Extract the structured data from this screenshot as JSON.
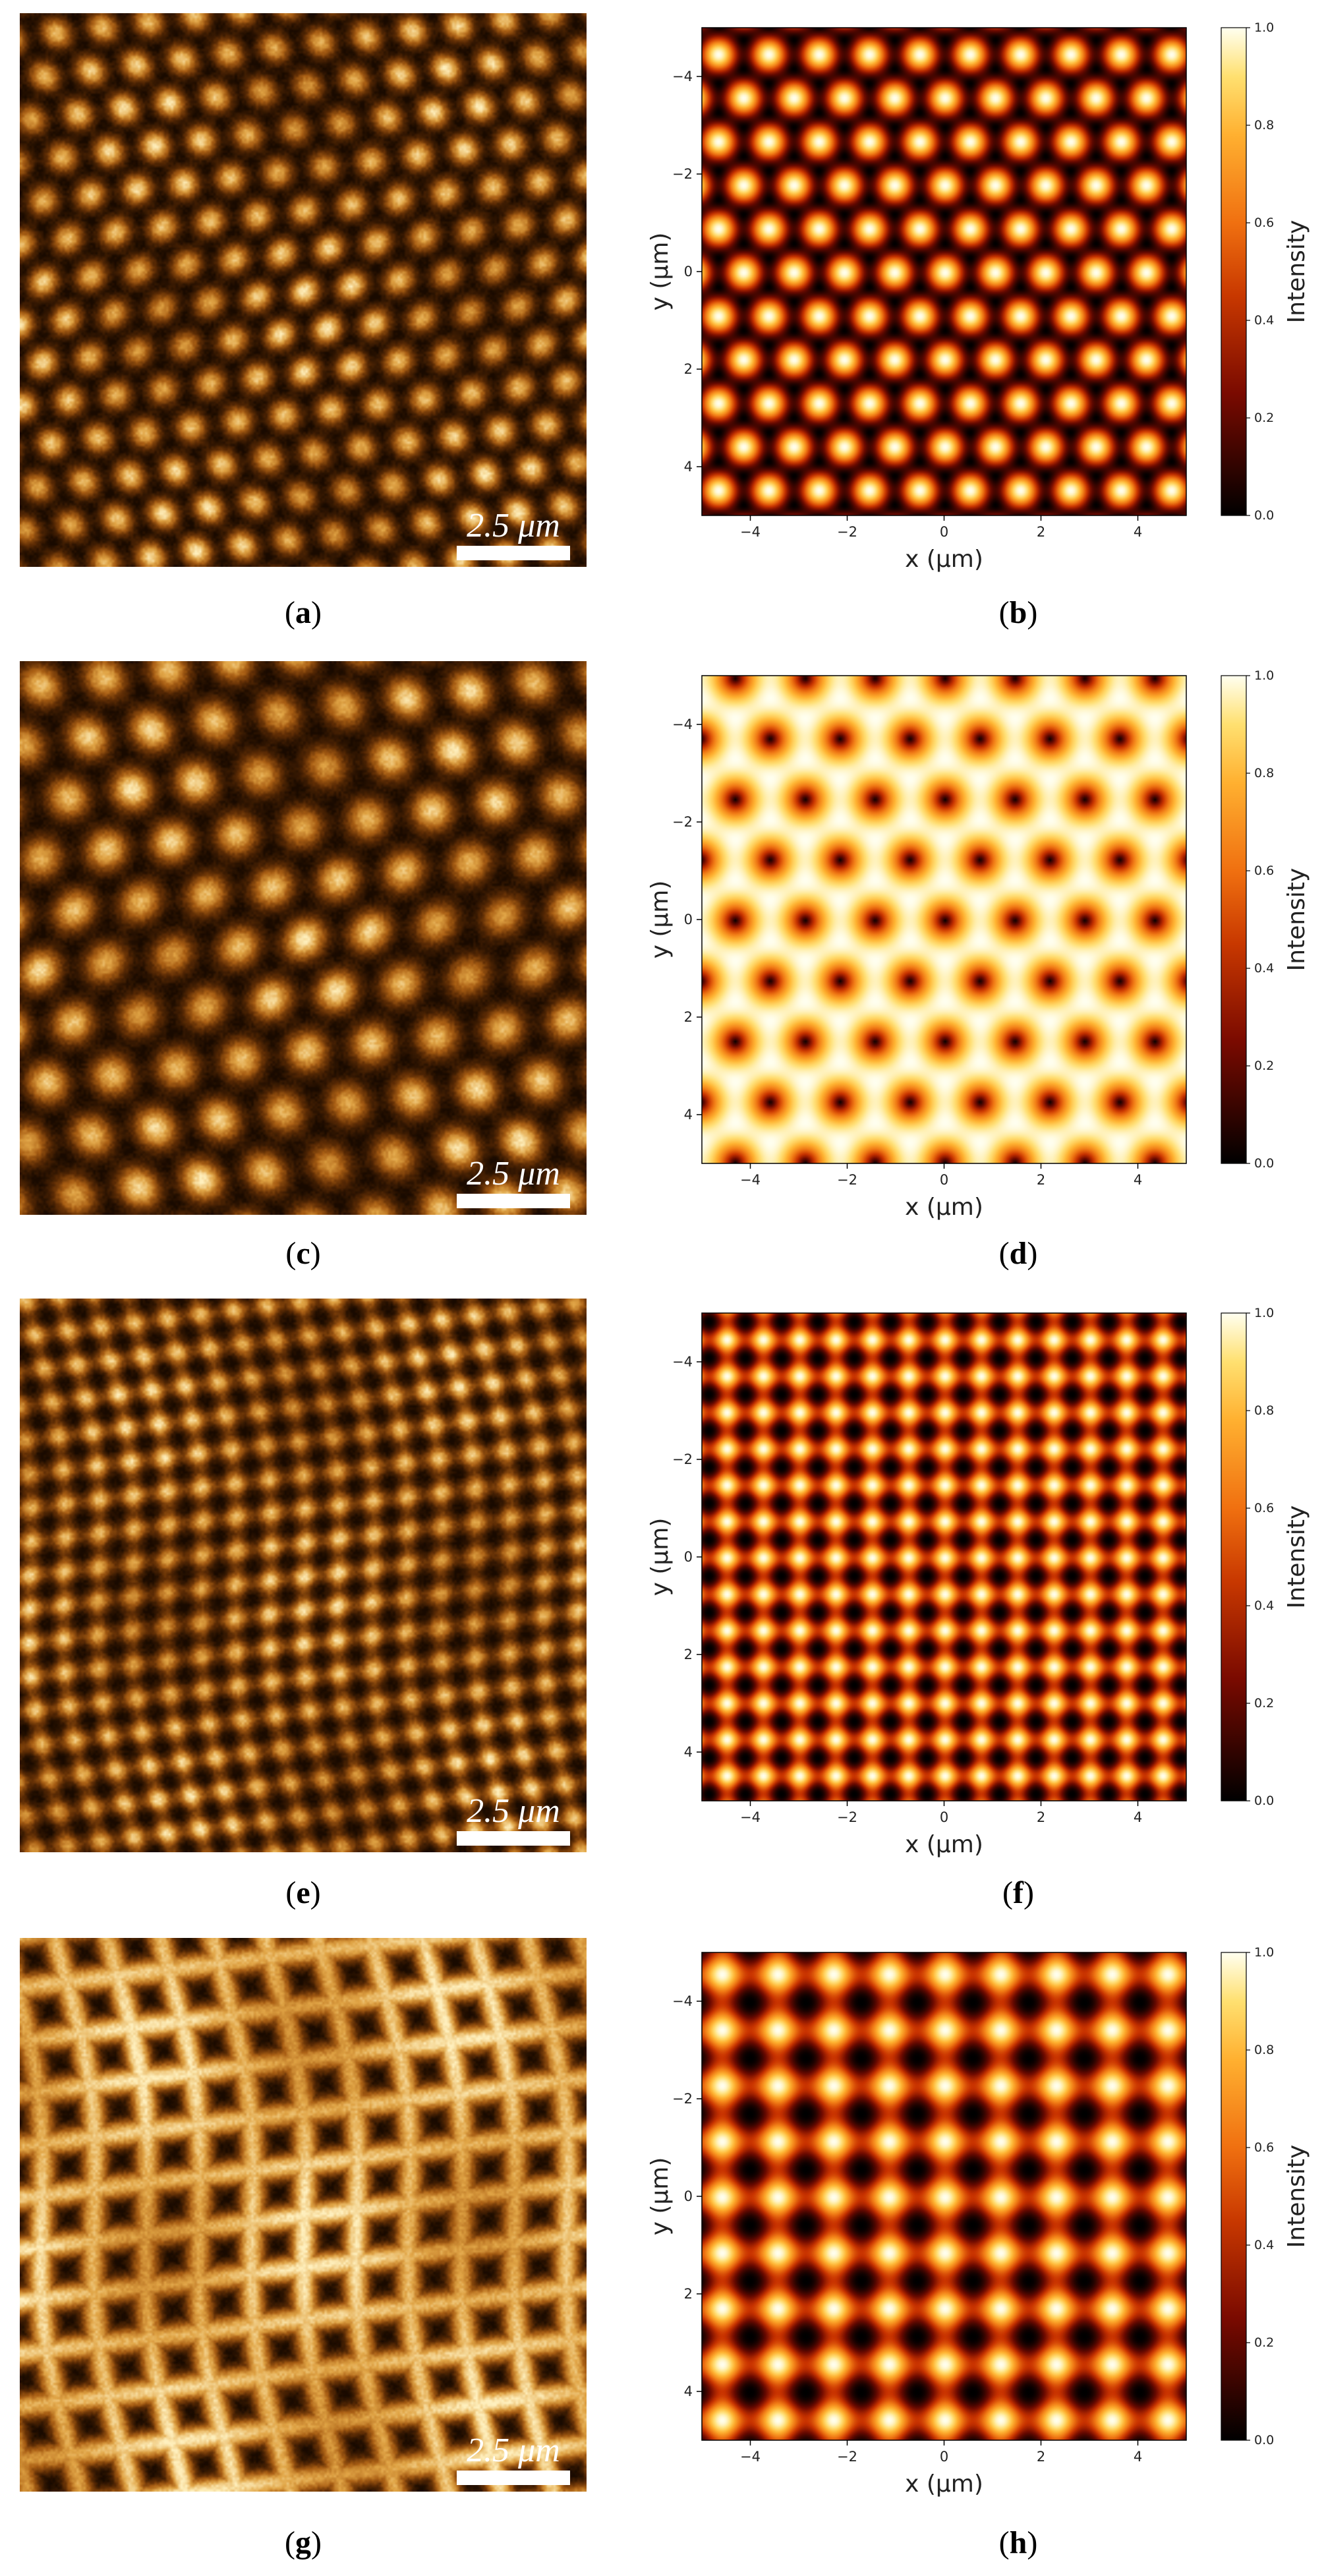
{
  "chart_data": [
    {
      "type": "heatmap",
      "panel": "(a)",
      "image_kind": "afm-topography",
      "lattice": "hexagonal-dots",
      "period_um": 0.9,
      "scale_bar": {
        "label": "2.5 μm",
        "length_um": 2.5
      },
      "colormap": "afmhot"
    },
    {
      "type": "heatmap",
      "panel": "(b)",
      "image_kind": "simulated-intensity",
      "lattice": "hexagonal-dots",
      "period_um": 0.9,
      "xlabel": "x (μm)",
      "ylabel": "y (μm)",
      "x_ticks": [
        -4,
        -2,
        0,
        2,
        4
      ],
      "y_ticks": [
        -4,
        -2,
        0,
        2,
        4
      ],
      "xlim": [
        -5,
        5
      ],
      "ylim": [
        -5,
        5
      ],
      "colorbar": {
        "label": "Intensity",
        "ticks": [
          "0.0",
          "0.2",
          "0.4",
          "0.6",
          "0.8",
          "1.0"
        ],
        "range": [
          0,
          1
        ]
      },
      "colormap": "afmhot"
    },
    {
      "type": "heatmap",
      "panel": "(c)",
      "image_kind": "afm-topography",
      "lattice": "hexagonal-dots",
      "period_um": 1.25,
      "scale_bar": {
        "label": "2.5 μm",
        "length_um": 2.5
      },
      "colormap": "afmhot"
    },
    {
      "type": "heatmap",
      "panel": "(d)",
      "image_kind": "simulated-intensity",
      "lattice": "hexagonal-holes",
      "period_um": 1.25,
      "xlabel": "x (μm)",
      "ylabel": "y (μm)",
      "x_ticks": [
        -4,
        -2,
        0,
        2,
        4
      ],
      "y_ticks": [
        -4,
        -2,
        0,
        2,
        4
      ],
      "xlim": [
        -5,
        5
      ],
      "ylim": [
        -5,
        5
      ],
      "colorbar": {
        "label": "Intensity",
        "ticks": [
          "0.0",
          "0.2",
          "0.4",
          "0.6",
          "0.8",
          "1.0"
        ],
        "range": [
          0,
          1
        ]
      },
      "colormap": "afmhot"
    },
    {
      "type": "heatmap",
      "panel": "(e)",
      "image_kind": "afm-topography",
      "lattice": "square-dots",
      "period_um": 0.75,
      "scale_bar": {
        "label": "2.5 μm",
        "length_um": 2.5
      },
      "colormap": "afmhot"
    },
    {
      "type": "heatmap",
      "panel": "(f)",
      "image_kind": "simulated-intensity",
      "lattice": "square-dots",
      "period_um": 0.75,
      "xlabel": "x (μm)",
      "ylabel": "y (μm)",
      "x_ticks": [
        -4,
        -2,
        0,
        2,
        4
      ],
      "y_ticks": [
        -4,
        -2,
        0,
        2,
        4
      ],
      "xlim": [
        -5,
        5
      ],
      "ylim": [
        -5,
        5
      ],
      "colorbar": {
        "label": "Intensity",
        "ticks": [
          "0.0",
          "0.2",
          "0.4",
          "0.6",
          "0.8",
          "1.0"
        ],
        "range": [
          0,
          1
        ]
      },
      "colormap": "afmhot"
    },
    {
      "type": "heatmap",
      "panel": "(g)",
      "image_kind": "afm-topography",
      "lattice": "square-grid",
      "period_um": 1.15,
      "scale_bar": {
        "label": "2.5 μm",
        "length_um": 2.5
      },
      "colormap": "afmhot"
    },
    {
      "type": "heatmap",
      "panel": "(h)",
      "image_kind": "simulated-intensity",
      "lattice": "square-dots",
      "period_um": 1.15,
      "xlabel": "x (μm)",
      "ylabel": "y (μm)",
      "x_ticks": [
        -4,
        -2,
        0,
        2,
        4
      ],
      "y_ticks": [
        -4,
        -2,
        0,
        2,
        4
      ],
      "xlim": [
        -5,
        5
      ],
      "ylim": [
        -5,
        5
      ],
      "colorbar": {
        "label": "Intensity",
        "ticks": [
          "0.0",
          "0.2",
          "0.4",
          "0.6",
          "0.8",
          "1.0"
        ],
        "range": [
          0,
          1
        ]
      },
      "colormap": "afmhot"
    }
  ]
}
